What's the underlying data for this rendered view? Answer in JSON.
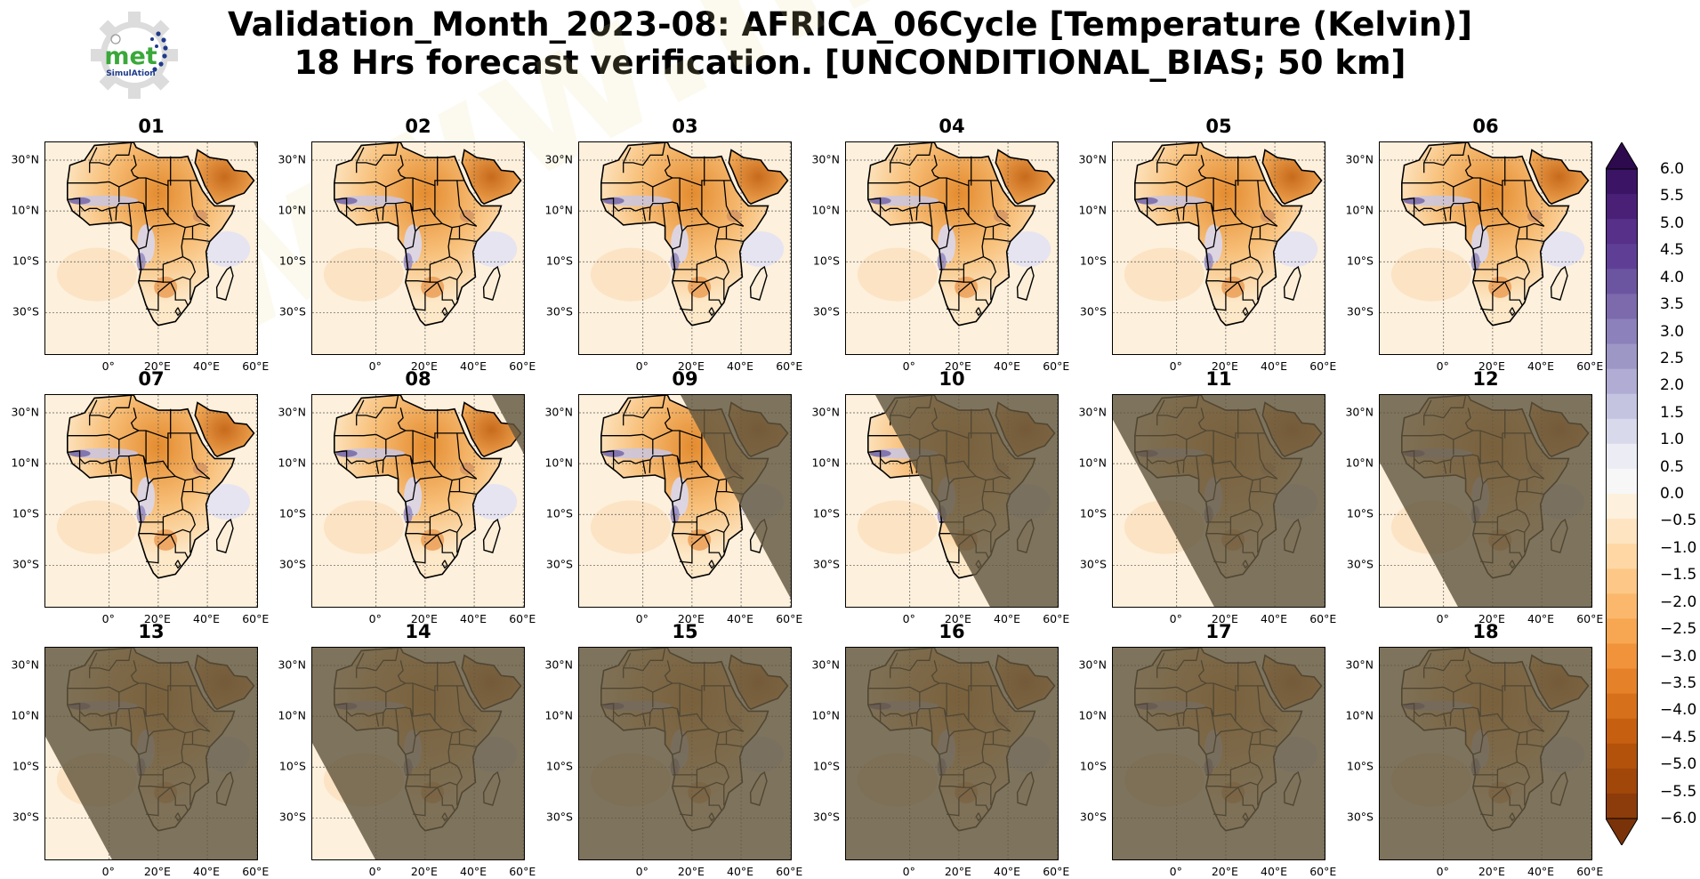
{
  "title": {
    "line1": "Validation_Month_2023-08: AFRICA_06Cycle [Temperature (Kelvin)]",
    "line2": "18 Hrs forecast verification. [UNCONDITIONAL_BIAS; 50 km]"
  },
  "logo": {
    "text": "met",
    "subtext": "SimulAtion"
  },
  "watermark": "www.met-simulation.com",
  "panels": [
    {
      "label": "01",
      "night": 0.08
    },
    {
      "label": "02",
      "night": 0.02
    },
    {
      "label": "03",
      "night": 0
    },
    {
      "label": "04",
      "night": 0
    },
    {
      "label": "05",
      "night": 0
    },
    {
      "label": "06",
      "night": 0
    },
    {
      "label": "07",
      "night": 0.03
    },
    {
      "label": "08",
      "night": 0.18
    },
    {
      "label": "09",
      "night": 0.45
    },
    {
      "label": "10",
      "night": 0.7
    },
    {
      "label": "11",
      "night": 0.85
    },
    {
      "label": "12",
      "night": 0.93
    },
    {
      "label": "13",
      "night": 0.97
    },
    {
      "label": "14",
      "night": 0.98
    },
    {
      "label": "15",
      "night": 1
    },
    {
      "label": "16",
      "night": 1
    },
    {
      "label": "17",
      "night": 1
    },
    {
      "label": "18",
      "night": 1
    }
  ],
  "axes": {
    "y_ticks": [
      "30°N",
      "10°N",
      "10°S",
      "30°S"
    ],
    "x_ticks": [
      "0°",
      "20°E",
      "40°E",
      "60°E"
    ]
  },
  "colorbar": {
    "labels": [
      "6.0",
      "5.5",
      "5.0",
      "4.5",
      "4.0",
      "3.5",
      "3.0",
      "2.5",
      "2.0",
      "1.5",
      "1.0",
      "0.5",
      "0.0",
      "−0.5",
      "−1.0",
      "−1.5",
      "−2.0",
      "−2.5",
      "−3.0",
      "−3.5",
      "−4.0",
      "−4.5",
      "−5.0",
      "−5.5",
      "−6.0"
    ],
    "colors": [
      "#2d0a4e",
      "#3b1466",
      "#4a2077",
      "#563089",
      "#5f3f96",
      "#6c55a0",
      "#7c6aad",
      "#8c81ba",
      "#9d97c6",
      "#b0acd3",
      "#c4c3e0",
      "#d9d9ec",
      "#ececf4",
      "#f7f7f7",
      "#fdf0dd",
      "#fee4c0",
      "#fed7a4",
      "#fdc887",
      "#fbb86c",
      "#f7a651",
      "#f0933a",
      "#e58129",
      "#d7701a",
      "#c65f10",
      "#b3520b",
      "#a1470a",
      "#8c3c0a",
      "#7a3309"
    ]
  }
}
